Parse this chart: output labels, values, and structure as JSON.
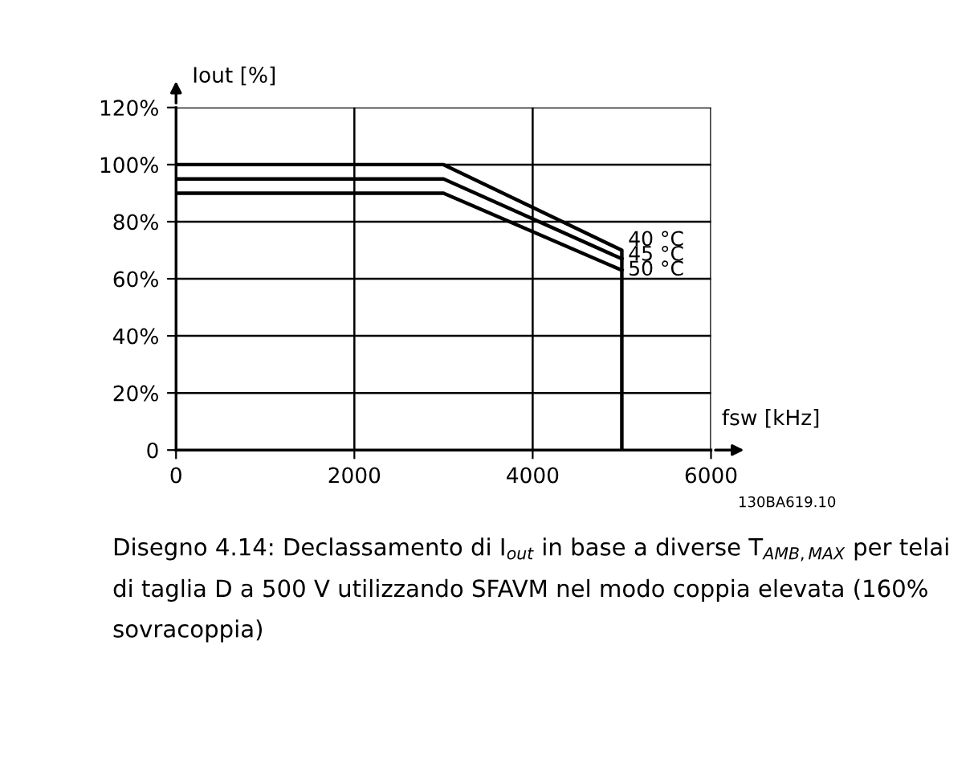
{
  "chart_data": {
    "type": "line",
    "xlabel": "fsw [kHz]",
    "ylabel": "Iout [%]",
    "series": [
      {
        "name": "40 °C",
        "color": "#000000",
        "x": [
          0,
          3000,
          5000,
          5000
        ],
        "values": [
          100,
          100,
          70,
          0
        ]
      },
      {
        "name": "45 °C",
        "color": "#000000",
        "x": [
          0,
          3000,
          5000
        ],
        "values": [
          95,
          95,
          67
        ]
      },
      {
        "name": "50 °C",
        "color": "#000000",
        "x": [
          0,
          3000,
          5000
        ],
        "values": [
          90,
          90,
          63
        ]
      }
    ],
    "xlim": [
      0,
      6000
    ],
    "xticks": [
      0,
      2000,
      4000,
      6000
    ],
    "ylim": [
      0,
      120
    ],
    "yticks": [
      {
        "value": 0,
        "label": "0"
      },
      {
        "value": 20,
        "label": "20%"
      },
      {
        "value": 40,
        "label": "40%"
      },
      {
        "value": 60,
        "label": "60%"
      },
      {
        "value": 80,
        "label": "80%"
      },
      {
        "value": 100,
        "label": "100%"
      },
      {
        "value": 120,
        "label": "120%"
      }
    ],
    "grid": true,
    "legend": false,
    "marker": "none",
    "line_style": "solid",
    "annotations": [
      "130BA619.10",
      "Disegno 4.14: Declassamento di I$_{out}$ in base a diverse T$_{AMB,MAX}$ per telai di taglia D a 500 V utilizzando SFAVM nel modo coppia elevata (160% sovracoppia)"
    ]
  }
}
